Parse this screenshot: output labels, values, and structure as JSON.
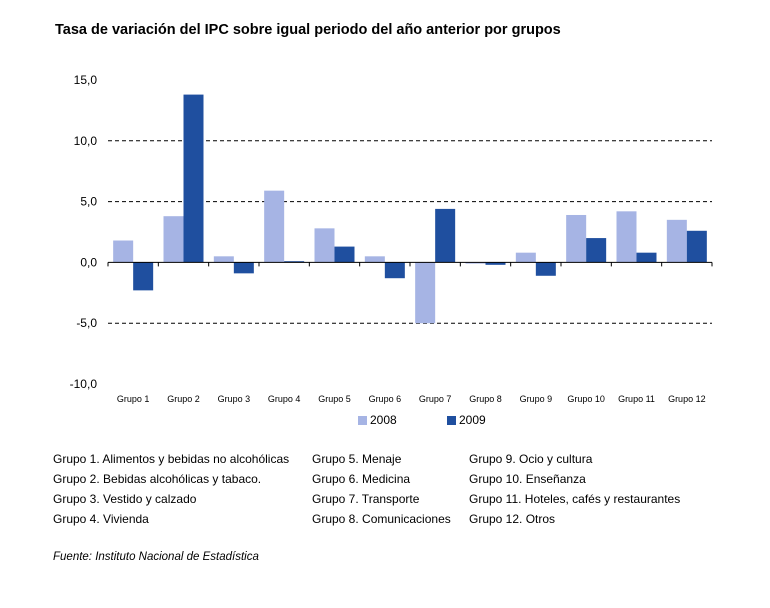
{
  "chart_data": {
    "type": "bar",
    "title": "Tasa de variación del IPC sobre igual periodo del año anterior por grupos",
    "categories": [
      "Grupo 1",
      "Grupo 2",
      "Grupo 3",
      "Grupo 4",
      "Grupo 5",
      "Grupo 6",
      "Grupo 7",
      "Grupo 8",
      "Grupo 9",
      "Grupo 10",
      "Grupo 11",
      "Grupo 12"
    ],
    "series": [
      {
        "name": "2008",
        "color": "#a6b4e4",
        "values": [
          1.8,
          3.8,
          0.5,
          5.9,
          2.8,
          0.5,
          -5.0,
          -0.1,
          0.8,
          3.9,
          4.2,
          3.5
        ]
      },
      {
        "name": "2009",
        "color": "#1f4f9f",
        "values": [
          -2.3,
          13.8,
          -0.9,
          0.1,
          1.3,
          -1.3,
          4.4,
          -0.2,
          -1.1,
          2.0,
          0.8,
          2.6
        ]
      }
    ],
    "yticks": [
      "15,0",
      "10,0",
      "5,0",
      "0,0",
      "-5,0",
      "-10,0"
    ],
    "ytick_values": [
      15,
      10,
      5,
      0,
      -5,
      -10
    ],
    "ylim": [
      -10,
      15
    ],
    "grid": "dashed horizontal at 10, 5, -5",
    "legend_position": "bottom-center"
  },
  "groups": [
    "Grupo 1. Alimentos y bebidas no alcohólicas",
    "Grupo 2. Bebidas alcohólicas y  tabaco.",
    "Grupo 3. Vestido y calzado",
    "Grupo 4. Vivienda",
    "Grupo 5. Menaje",
    "Grupo 6. Medicina",
    "Grupo 7. Transporte",
    "Grupo 8. Comunicaciones",
    "Grupo 9. Ocio y cultura",
    "Grupo 10. Enseñanza",
    "Grupo 11. Hoteles, cafés y restaurantes",
    "Grupo 12. Otros"
  ],
  "source": "Fuente: Instituto Nacional de Estadística"
}
